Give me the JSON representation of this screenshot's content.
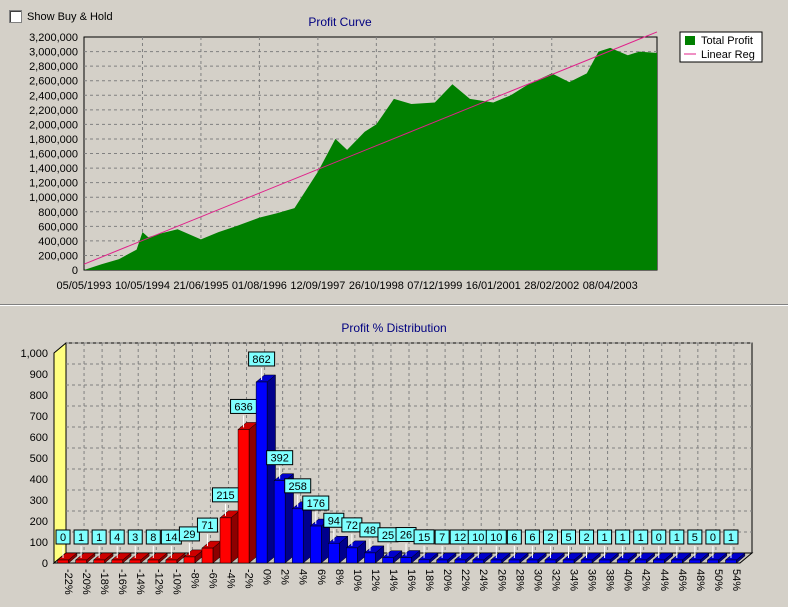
{
  "checkbox": {
    "label": "Show Buy & Hold",
    "checked": false
  },
  "chart_data": [
    {
      "type": "area",
      "title": "Profit Curve",
      "ylim": [
        0,
        3200000
      ],
      "yticks": [
        "0",
        "200,000",
        "400,000",
        "600,000",
        "800,000",
        "1,000,000",
        "1,200,000",
        "1,400,000",
        "1,600,000",
        "1,800,000",
        "2,000,000",
        "2,200,000",
        "2,400,000",
        "2,600,000",
        "2,800,000",
        "3,000,000",
        "3,200,000"
      ],
      "xticks": [
        "05/05/1993",
        "10/05/1994",
        "21/06/1995",
        "01/08/1996",
        "12/09/1997",
        "26/10/1998",
        "07/12/1999",
        "16/01/2001",
        "28/02/2002",
        "08/04/2003"
      ],
      "grid": true,
      "legend_position": "top-right",
      "colors": {
        "profit": "#008000",
        "linreg": "#e0208a"
      },
      "series": [
        {
          "name": "Total Profit",
          "x_index": [
            0,
            0.3,
            0.6,
            0.9,
            1.0,
            1.1,
            1.3,
            1.6,
            2.0,
            2.3,
            2.6,
            3.0,
            3.3,
            3.6,
            4.0,
            4.3,
            4.5,
            4.8,
            5.0,
            5.3,
            5.6,
            6.0,
            6.3,
            6.6,
            7.0,
            7.3,
            7.6,
            8.0,
            8.3,
            8.6,
            8.8,
            9.0,
            9.3,
            9.5,
            9.8
          ],
          "values": [
            0,
            80000,
            150000,
            280000,
            520000,
            450000,
            500000,
            560000,
            420000,
            520000,
            600000,
            720000,
            780000,
            850000,
            1350000,
            1800000,
            1650000,
            1900000,
            2000000,
            2350000,
            2280000,
            2300000,
            2550000,
            2350000,
            2300000,
            2400000,
            2550000,
            2700000,
            2580000,
            2700000,
            3000000,
            3050000,
            2950000,
            3000000,
            2980000
          ]
        },
        {
          "name": "Linear Reg",
          "x_index": [
            0,
            9.8
          ],
          "values": [
            80000,
            3270000
          ]
        }
      ]
    },
    {
      "type": "bar",
      "title": "Profit % Distribution",
      "ylim": [
        0,
        1000
      ],
      "yticks": [
        "0",
        "100",
        "200",
        "300",
        "400",
        "500",
        "600",
        "700",
        "800",
        "900",
        "1,000"
      ],
      "categories": [
        "-22%",
        "-20%",
        "-18%",
        "-16%",
        "-14%",
        "-12%",
        "-10%",
        "-8%",
        "-6%",
        "-4%",
        "-2%",
        "0%",
        "2%",
        "4%",
        "6%",
        "8%",
        "10%",
        "12%",
        "14%",
        "16%",
        "18%",
        "20%",
        "22%",
        "24%",
        "26%",
        "28%",
        "30%",
        "32%",
        "34%",
        "36%",
        "38%",
        "40%",
        "42%",
        "44%",
        "46%",
        "48%",
        "50%",
        "54%"
      ],
      "values": [
        0,
        1,
        1,
        4,
        3,
        8,
        14,
        29,
        71,
        215,
        636,
        862,
        392,
        258,
        176,
        94,
        72,
        48,
        25,
        26,
        15,
        7,
        12,
        10,
        10,
        6,
        6,
        2,
        5,
        2,
        1,
        1,
        1,
        0,
        1,
        5,
        0,
        1
      ],
      "colors": {
        "negative": "#ff0000",
        "positive": "#0000ff",
        "label_bg": "#7fffff"
      },
      "grid": true
    }
  ]
}
